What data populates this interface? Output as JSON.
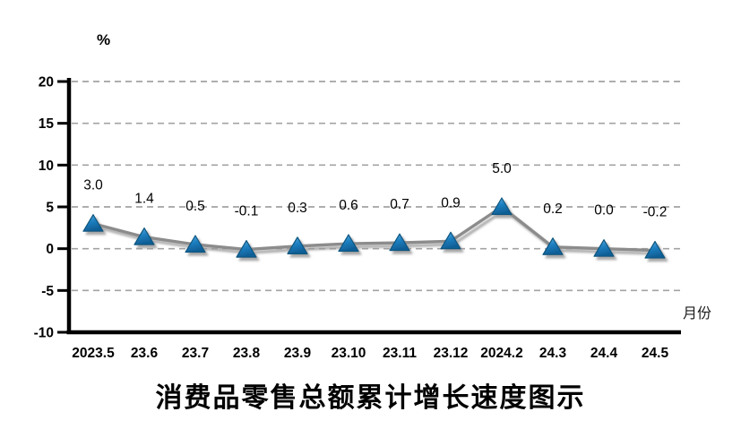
{
  "chart_data": {
    "type": "line",
    "title": "消费品零售总额累计增长速度图示",
    "xlabel": "月份",
    "ylabel": "%",
    "categories": [
      "2023.5",
      "23.6",
      "23.7",
      "23.8",
      "23.9",
      "23.10",
      "23.11",
      "23.12",
      "2024.2",
      "24.3",
      "24.4",
      "24.5"
    ],
    "values": [
      3.0,
      1.4,
      0.5,
      -0.1,
      0.3,
      0.6,
      0.7,
      0.9,
      5.0,
      0.2,
      0.0,
      -0.2
    ],
    "data_labels": [
      "3.0",
      "1.4",
      "0.5",
      "-0.1",
      "0.3",
      "0.6",
      "0.7",
      "0.9",
      "5.0",
      "0.2",
      "0.0",
      "-0.2"
    ],
    "ylim": [
      -10,
      20
    ],
    "y_ticks": [
      20,
      15,
      10,
      5,
      0,
      -5,
      -10
    ],
    "y_tick_labels": [
      "20",
      "15",
      "10",
      "5",
      "0",
      "-5",
      "-10"
    ],
    "y_gridlines": [
      20,
      15,
      10,
      5,
      0,
      -5
    ],
    "grid": "dashed horizontal",
    "legend": "none",
    "marker": "triangle-up",
    "colors": {
      "line": "#8c8c8c",
      "grid": "#a3a3a3",
      "axis": "#000000",
      "text": "#000000",
      "marker_light": "#5fb0e0",
      "marker_fill": "#1d7fc0",
      "marker_dark": "#0f5e95",
      "marker_edge": "#0d567f",
      "shadow": "#999999"
    }
  }
}
